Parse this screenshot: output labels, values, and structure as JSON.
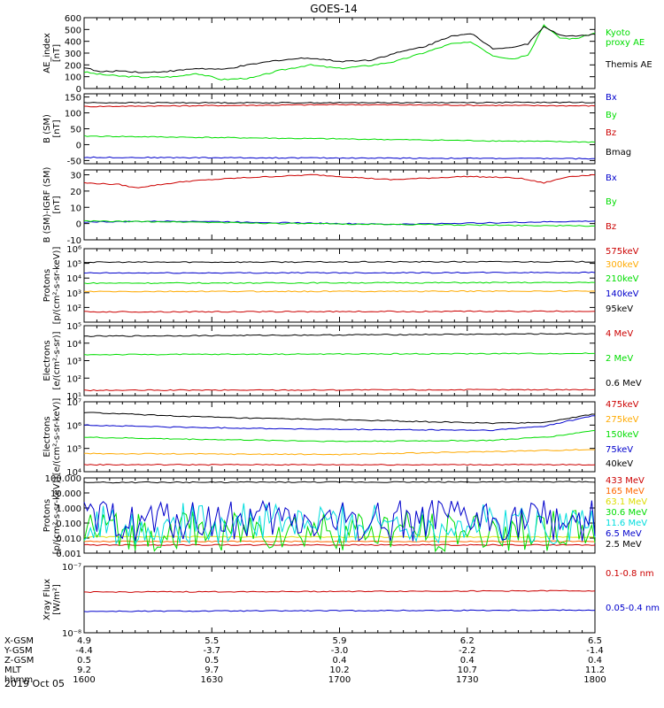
{
  "title": "GOES-14",
  "date": "2019 Oct 05",
  "chart_data": [
    {
      "type": "line",
      "ylabel": "AE_index\n[nT]",
      "yscale": "linear",
      "ylim": [
        0,
        600
      ],
      "yticks": [
        0,
        100,
        200,
        300,
        400,
        500,
        600
      ],
      "ytick_labels": [
        "0",
        "100",
        "200",
        "300",
        "400",
        "500",
        "600"
      ],
      "series": [
        {
          "name": "Kyoto\nproxy AE",
          "color": "#00dd00",
          "x": [
            0,
            0.03,
            0.07,
            0.12,
            0.18,
            0.22,
            0.27,
            0.33,
            0.38,
            0.44,
            0.5,
            0.56,
            0.61,
            0.67,
            0.72,
            0.76,
            0.8,
            0.84,
            0.87,
            0.9,
            0.93,
            0.96,
            1
          ],
          "values": [
            140,
            120,
            105,
            95,
            100,
            130,
            75,
            90,
            150,
            200,
            170,
            195,
            230,
            310,
            380,
            390,
            280,
            250,
            290,
            540,
            430,
            420,
            470
          ],
          "legend_y": 40
        },
        {
          "name": "Themis AE",
          "color": "#000000",
          "x": [
            0,
            0.03,
            0.07,
            0.12,
            0.18,
            0.22,
            0.27,
            0.33,
            0.38,
            0.44,
            0.5,
            0.56,
            0.61,
            0.67,
            0.72,
            0.76,
            0.8,
            0.84,
            0.87,
            0.9,
            0.93,
            0.96,
            1
          ],
          "values": [
            180,
            140,
            150,
            135,
            150,
            170,
            160,
            205,
            240,
            260,
            230,
            240,
            300,
            360,
            450,
            460,
            340,
            350,
            380,
            530,
            450,
            445,
            460
          ],
          "legend_y": 76
        }
      ]
    },
    {
      "type": "line",
      "ylabel": "B (SM)\n[nT]",
      "yscale": "linear",
      "ylim": [
        -60,
        160
      ],
      "yticks": [
        -50,
        0,
        50,
        100,
        150
      ],
      "ytick_labels": [
        "-50",
        "0",
        "50",
        "100",
        "150"
      ],
      "series": [
        {
          "name": "Bx",
          "color": "#0000cc",
          "x": [
            0,
            0.5,
            1
          ],
          "values": [
            -40,
            -42,
            -44
          ],
          "legend_y": 113
        },
        {
          "name": "By",
          "color": "#00dd00",
          "x": [
            0,
            0.5,
            1
          ],
          "values": [
            27,
            18,
            8
          ],
          "legend_y": 133
        },
        {
          "name": "Bz",
          "color": "#cc0000",
          "x": [
            0,
            0.5,
            1
          ],
          "values": [
            120,
            126,
            122
          ],
          "legend_y": 153
        },
        {
          "name": "Bmag",
          "color": "#000000",
          "x": [
            0,
            0.5,
            1
          ],
          "values": [
            132,
            132,
            133
          ],
          "legend_y": 175
        }
      ]
    },
    {
      "type": "line",
      "ylabel": "B (SM)-IGRF (SM)\n[nT]",
      "yscale": "linear",
      "ylim": [
        -10,
        33
      ],
      "yticks": [
        -10,
        0,
        10,
        20,
        30
      ],
      "ytick_labels": [
        "-10",
        "0",
        "10",
        "20",
        "30"
      ],
      "series": [
        {
          "name": "Bx",
          "color": "#0000cc",
          "x": [
            0,
            0.2,
            0.4,
            0.6,
            0.8,
            1
          ],
          "values": [
            1,
            1.5,
            0.5,
            -0.5,
            0.5,
            1.5
          ],
          "legend_y": 204
        },
        {
          "name": "By",
          "color": "#00dd00",
          "x": [
            0,
            0.2,
            0.4,
            0.6,
            0.8,
            1
          ],
          "values": [
            1.5,
            1,
            0,
            -0.5,
            -1,
            -1.5
          ],
          "legend_y": 231
        },
        {
          "name": "Bz",
          "color": "#cc0000",
          "x": [
            0,
            0.07,
            0.1,
            0.2,
            0.3,
            0.45,
            0.6,
            0.75,
            0.85,
            0.9,
            0.95,
            1
          ],
          "values": [
            25,
            24,
            22,
            26,
            28,
            30,
            27,
            29,
            28,
            25,
            29,
            30
          ],
          "legend_y": 259
        }
      ]
    },
    {
      "type": "line",
      "ylabel": "Protons\n[p/(cm²-s-sr-keV)]",
      "yscale": "log",
      "ylim": [
        10,
        1000000
      ],
      "yticks": [
        100,
        1000,
        10000,
        100000,
        1000000
      ],
      "ytick_labels": [
        "10²",
        "10³",
        "10⁴",
        "10⁵",
        "10⁶"
      ],
      "series": [
        {
          "name": "575keV",
          "color": "#cc0000",
          "x": [
            0,
            1
          ],
          "values": [
            50,
            55
          ],
          "legend_y": 287
        },
        {
          "name": "300keV",
          "color": "#ffaa00",
          "x": [
            0,
            1
          ],
          "values": [
            1200,
            1300
          ],
          "legend_y": 302
        },
        {
          "name": "210keV",
          "color": "#00dd00",
          "x": [
            0,
            1
          ],
          "values": [
            4500,
            5000
          ],
          "legend_y": 318
        },
        {
          "name": "140keV",
          "color": "#0000cc",
          "x": [
            0,
            1
          ],
          "values": [
            22000,
            24000
          ],
          "legend_y": 335
        },
        {
          "name": "95keV",
          "color": "#000000",
          "x": [
            0,
            1
          ],
          "values": [
            120000,
            130000
          ],
          "legend_y": 352
        }
      ]
    },
    {
      "type": "line",
      "ylabel": "Electrons\n[e/(cm²-s-sr)]",
      "yscale": "log",
      "ylim": [
        10,
        100000
      ],
      "yticks": [
        10,
        100,
        1000,
        10000,
        100000
      ],
      "ytick_labels": [
        "10¹",
        "10²",
        "10³",
        "10⁴",
        "10⁵"
      ],
      "series": [
        {
          "name": "4 MeV",
          "color": "#cc0000",
          "x": [
            0,
            1
          ],
          "values": [
            20,
            22
          ],
          "legend_y": 380
        },
        {
          "name": "2 MeV",
          "color": "#00dd00",
          "x": [
            0,
            1
          ],
          "values": [
            2200,
            2600
          ],
          "legend_y": 408
        },
        {
          "name": "0.6 MeV",
          "color": "#000000",
          "x": [
            0,
            1
          ],
          "values": [
            25000,
            35000
          ],
          "legend_y": 436
        }
      ]
    },
    {
      "type": "line",
      "ylabel": "Electrons\n[e/(cm²-s-sr-keV)]",
      "yscale": "log",
      "ylim": [
        10000,
        10000000
      ],
      "yticks": [
        10000,
        100000,
        1000000,
        10000000
      ],
      "ytick_labels": [
        "10⁴",
        "10⁵",
        "10⁶",
        "10⁷"
      ],
      "series": [
        {
          "name": "475keV",
          "color": "#cc0000",
          "x": [
            0,
            1
          ],
          "values": [
            20000,
            20000
          ],
          "legend_y": 460
        },
        {
          "name": "275keV",
          "color": "#ffaa00",
          "x": [
            0,
            0.5,
            1
          ],
          "values": [
            60000,
            55000,
            90000
          ],
          "legend_y": 477
        },
        {
          "name": "150keV",
          "color": "#00dd00",
          "x": [
            0,
            0.2,
            0.5,
            0.8,
            0.92,
            1
          ],
          "values": [
            300000,
            250000,
            200000,
            220000,
            330000,
            600000
          ],
          "legend_y": 494
        },
        {
          "name": "75keV",
          "color": "#0000cc",
          "x": [
            0,
            0.2,
            0.5,
            0.8,
            0.9,
            1
          ],
          "values": [
            1000000,
            800000,
            650000,
            600000,
            900000,
            2600000
          ],
          "legend_y": 511
        },
        {
          "name": "40keV",
          "color": "#000000",
          "x": [
            0,
            0.15,
            0.3,
            0.5,
            0.8,
            0.9,
            1
          ],
          "values": [
            3500000,
            2600000,
            2000000,
            1700000,
            1200000,
            1300000,
            3000000
          ],
          "legend_y": 527
        }
      ]
    },
    {
      "type": "line",
      "ylabel": "Protons\n[p/(cm²-s-sr-keV)]",
      "yscale": "log",
      "ylim": [
        0.001,
        100
      ],
      "yticks": [
        0.001,
        0.01,
        0.1,
        1,
        10,
        100
      ],
      "ytick_labels": [
        "0.001",
        "0.010",
        "0.100",
        "1.000",
        "10.000",
        "100.000"
      ],
      "series": [
        {
          "name": "433 MeV",
          "color": "#cc0000",
          "x": [
            0,
            1
          ],
          "values": [
            0.0035,
            0.0035
          ],
          "legend_y": 546
        },
        {
          "name": "165 MeV",
          "color": "#ff6600",
          "x": [
            0,
            1
          ],
          "values": [
            0.006,
            0.006
          ],
          "legend_y": 558
        },
        {
          "name": "63.1 MeV",
          "color": "#dddd00",
          "x": [
            0,
            1
          ],
          "values": [
            0.012,
            0.012
          ],
          "legend_y": 570
        },
        {
          "name": "30.6 MeV",
          "color": "#00dd00",
          "x": [
            0,
            1
          ],
          "values": [
            0.03,
            0.03
          ],
          "legend_y": 582
        },
        {
          "name": "11.6 MeV",
          "color": "#00dddd",
          "x": [
            0,
            1
          ],
          "values": [
            0.09,
            0.09
          ],
          "legend_y": 594
        },
        {
          "name": "6.5 MeV",
          "color": "#0000cc",
          "x": [
            0,
            1
          ],
          "values": [
            0.14,
            0.14
          ],
          "legend_y": 606
        },
        {
          "name": "2.5 MeV",
          "color": "#000000",
          "x": [
            0,
            1
          ],
          "values": [
            50,
            55
          ],
          "legend_y": 618
        }
      ]
    },
    {
      "type": "line",
      "ylabel": "Xray Flux\n[W/m²]",
      "yscale": "log",
      "ylim": [
        1e-08,
        1e-07
      ],
      "yticks": [
        1e-08,
        1e-07
      ],
      "ytick_labels": [
        "10⁻⁸",
        "10⁻⁷"
      ],
      "series": [
        {
          "name": "0.1-0.8 nm",
          "color": "#cc0000",
          "x": [
            0,
            1
          ],
          "values": [
            4.1e-08,
            4.3e-08
          ],
          "legend_y": 651
        },
        {
          "name": "0.05-0.4 nm",
          "color": "#0000cc",
          "x": [
            0,
            1
          ],
          "values": [
            2.1e-08,
            2.2e-08
          ],
          "legend_y": 690
        }
      ]
    }
  ],
  "x_axis": {
    "row_labels": [
      "X-GSM",
      "Y-GSM",
      "Z-GSM",
      "MLT",
      "hhmm"
    ],
    "columns": [
      {
        "x": 0,
        "values": [
          "4.9",
          "-4.4",
          "0.5",
          "9.2",
          "1600"
        ]
      },
      {
        "x": 0.25,
        "values": [
          "5.5",
          "-3.7",
          "0.5",
          "9.7",
          "1630"
        ]
      },
      {
        "x": 0.5,
        "values": [
          "5.9",
          "-3.0",
          "0.4",
          "10.2",
          "1700"
        ]
      },
      {
        "x": 0.75,
        "values": [
          "6.2",
          "-2.2",
          "0.4",
          "10.7",
          "1730"
        ]
      },
      {
        "x": 1,
        "values": [
          "6.5",
          "-1.4",
          "0.4",
          "11.2",
          "1800"
        ]
      }
    ]
  },
  "colors": {
    "background": "#ffffff",
    "axes": "#000000"
  }
}
